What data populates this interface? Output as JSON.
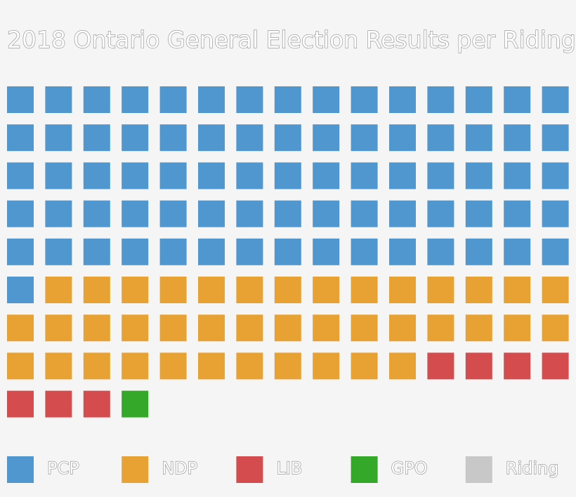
{
  "chart_data": {
    "type": "waffle",
    "title": "2018 Ontario General Election Results per Riding",
    "series": [
      {
        "name": "PCP",
        "color": "#5097d0",
        "value": 76
      },
      {
        "name": "NDP",
        "color": "#e8a234",
        "value": 40
      },
      {
        "name": "LIB",
        "color": "#d44c4e",
        "value": 7
      },
      {
        "name": "GPO",
        "color": "#33a829",
        "value": 1
      }
    ],
    "unit": {
      "name": "Riding",
      "color": "#c8c8c8"
    }
  }
}
